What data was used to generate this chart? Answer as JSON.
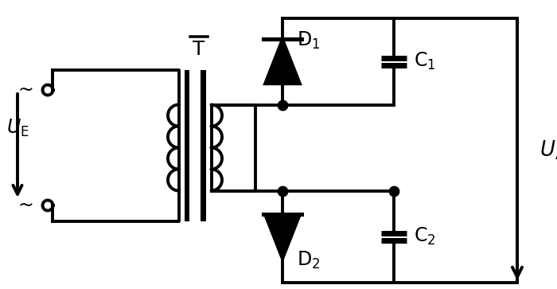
{
  "fig_width": 7.0,
  "fig_height": 3.63,
  "dpi": 100,
  "lw": 2.8,
  "color": "black",
  "dot_size": 9,
  "background": "white",
  "transformer_label": "T",
  "d1_label": "D$_1$",
  "d2_label": "D$_2$",
  "c1_label": "C$_1$",
  "c2_label": "C$_2$",
  "ue_label": "$U_{\\mathrm{E}}$",
  "ua_label": "$U_{\\mathrm{A}}$",
  "tilde": "~"
}
